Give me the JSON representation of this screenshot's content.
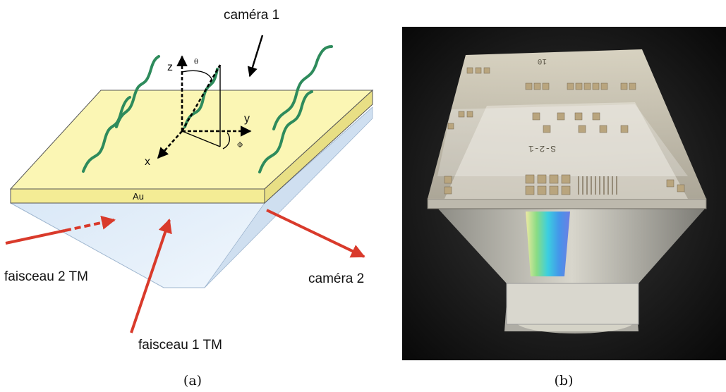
{
  "panel_a": {
    "labels": {
      "camera1": "caméra 1",
      "camera2": "caméra 2",
      "beam2": "faisceau 2 TM",
      "beam1": "faisceau 1 TM",
      "gold": "Au",
      "axis_z": "z",
      "axis_y": "y",
      "axis_x": "x",
      "theta": "θ",
      "phi": "Φ"
    },
    "caption": "(a)"
  },
  "panel_b": {
    "sample_label": "S-2-1",
    "corner_label": "10",
    "caption": "(b)"
  },
  "colors": {
    "gold_film": "#fbf6b4",
    "prism": "#dbe9f7",
    "arrow_red": "#d93a2b",
    "molecule_green": "#2e8b5c"
  }
}
